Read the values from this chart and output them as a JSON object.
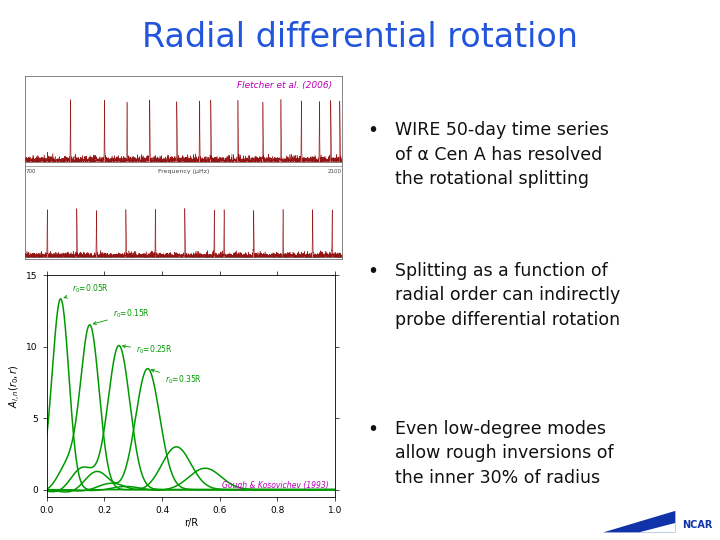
{
  "title": "Radial differential rotation",
  "title_color": "#2255DD",
  "title_fontsize": 24,
  "bg_color": "#FFFFFF",
  "header_bg": "#E8E8E8",
  "bullet_points": [
    "WIRE 50-day time series\nof α Cen A has resolved\nthe rotational splitting",
    "Splitting as a function of\nradial order can indirectly\nprobe differential rotation",
    "Even low-degree modes\nallow rough inversions of\nthe inner 30% of radius"
  ],
  "bullet_color": "#111111",
  "bullet_fontsize": 12.5,
  "fletcher_label": "Fletcher et al. (2006)",
  "fletcher_color": "#BB00BB",
  "gough_label": "Gough & Kosovichev (1993)",
  "gough_color": "#BB00BB",
  "green_curve_color": "#009900",
  "plot_bg": "#FFFFFF",
  "ncar_color": "#1133AA",
  "spectrum_peak_color": "#8B0000",
  "spectrum_fill_color": "#CC4444"
}
